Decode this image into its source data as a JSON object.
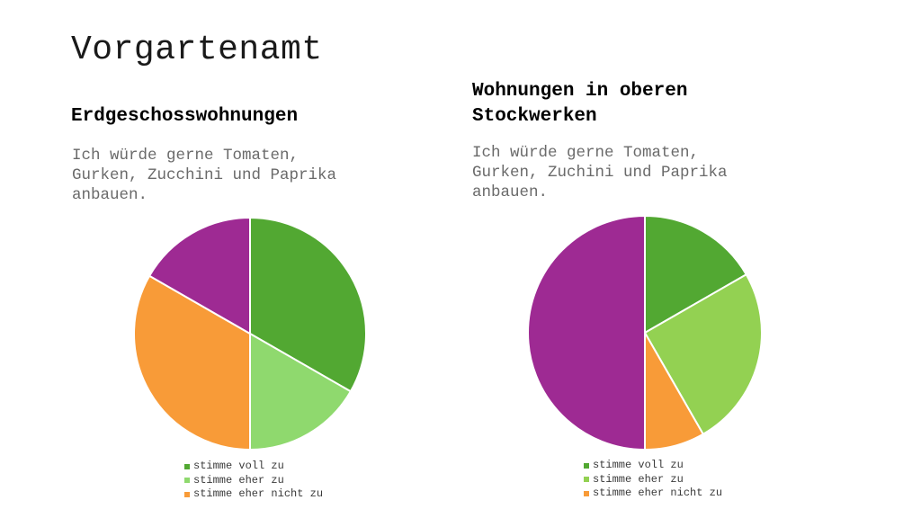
{
  "slide": {
    "title": "Vorgartenamt"
  },
  "chart_data": [
    {
      "type": "pie",
      "title": "Erdgeschosswohnungen",
      "subtitle": "Ich würde gerne Tomaten,\nGurken, Zucchini und Paprika\nanbauen.",
      "categories": [
        "stimme voll zu",
        "stimme eher zu",
        "stimme eher nicht zu",
        ""
      ],
      "values": [
        33.3,
        16.7,
        33.3,
        16.7
      ],
      "colors": [
        "#52a832",
        "#8fd96e",
        "#f89b38",
        "#9e2a93"
      ],
      "legend_entries": [
        "stimme voll zu",
        "stimme eher zu",
        "stimme eher nicht zu"
      ],
      "legend_position": "bottom"
    },
    {
      "type": "pie",
      "title": "Wohnungen in oberen\nStockwerken",
      "subtitle": "Ich würde gerne Tomaten,\nGurken, Zuchini und Paprika\nanbauen.",
      "categories": [
        "stimme voll zu",
        "stimme eher zu",
        "stimme eher nicht zu",
        ""
      ],
      "values": [
        16.7,
        25,
        8.3,
        50
      ],
      "colors": [
        "#52a832",
        "#93d152",
        "#f89b38",
        "#9e2a93"
      ],
      "legend_entries": [
        "stimme voll zu",
        "stimme eher zu",
        "stimme eher nicht zu"
      ],
      "legend_position": "bottom"
    }
  ]
}
